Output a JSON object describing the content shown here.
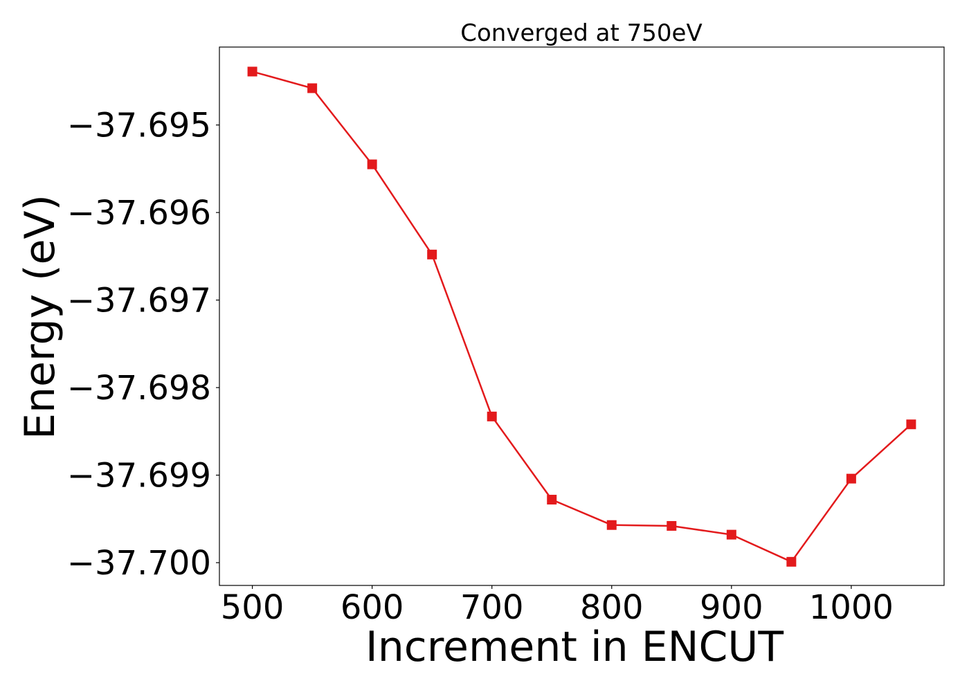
{
  "chart_data": {
    "type": "line",
    "title": "Converged at 750eV",
    "xlabel": "Increment in ENCUT",
    "ylabel": "Energy (eV)",
    "xlim": [
      472.5,
      1077.5
    ],
    "ylim": [
      -37.70026,
      -37.69411
    ],
    "xticks": [
      500,
      600,
      700,
      800,
      900,
      1000
    ],
    "xtick_labels": [
      "500",
      "600",
      "700",
      "800",
      "900",
      "1000"
    ],
    "yticks": [
      -37.695,
      -37.696,
      -37.697,
      -37.698,
      -37.699,
      -37.7
    ],
    "ytick_labels": [
      "−37.695",
      "−37.696",
      "−37.697",
      "−37.698",
      "−37.699",
      "−37.700"
    ],
    "grid": false,
    "series": [
      {
        "color": "#e31a1c",
        "marker": "square",
        "x": [
          500,
          550,
          600,
          650,
          700,
          750,
          800,
          850,
          900,
          950,
          1000,
          1050
        ],
        "y": [
          -37.69439,
          -37.69458,
          -37.69545,
          -37.69648,
          -37.69833,
          -37.69928,
          -37.69957,
          -37.69958,
          -37.69968,
          -37.69999,
          -37.69904,
          -37.69842
        ]
      }
    ]
  }
}
